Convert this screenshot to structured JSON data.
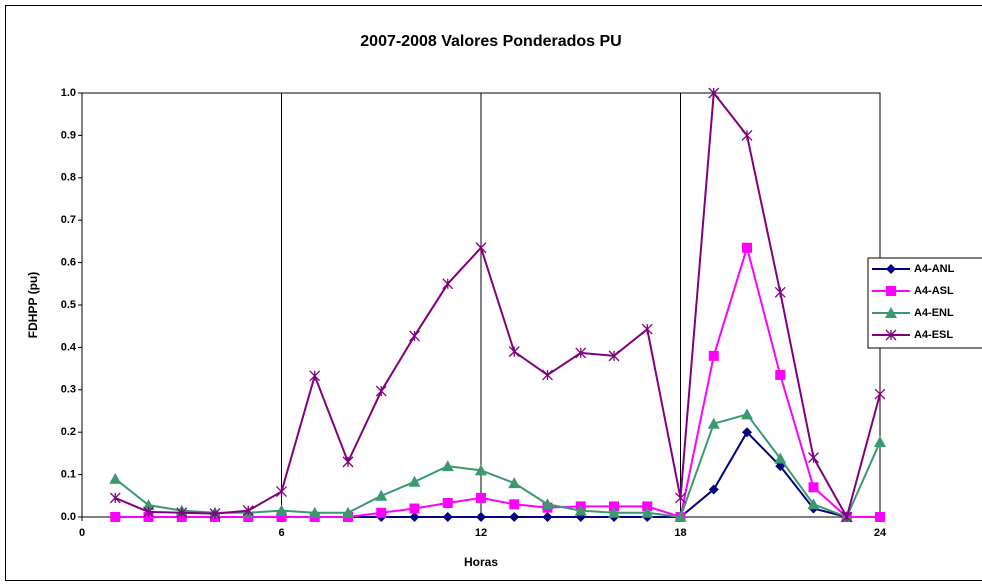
{
  "chart_data": {
    "type": "line",
    "title": "2007-2008 Valores Ponderados PU",
    "x_label": "Horas",
    "y_label": "FDHPP (pu)",
    "x": [
      1,
      2,
      3,
      4,
      5,
      6,
      7,
      8,
      9,
      10,
      11,
      12,
      13,
      14,
      15,
      16,
      17,
      18,
      19,
      20,
      21,
      22,
      23,
      24
    ],
    "xlim": [
      0,
      24
    ],
    "xticks": [
      0,
      6,
      12,
      18,
      24
    ],
    "ylim": [
      0,
      1
    ],
    "yticks": [
      {
        "value": 0,
        "label": "0.0"
      },
      0.1,
      0.2,
      0.3,
      0.4,
      0.5,
      0.6,
      0.7,
      0.8,
      0.9,
      {
        "value": 1,
        "label": "1.0"
      }
    ],
    "grid": "x",
    "legend": "right",
    "series": [
      {
        "name": "A4-ANL",
        "color": "#000080",
        "marker": "diamond",
        "values": [
          0,
          0,
          0,
          0,
          0,
          0,
          0,
          0,
          0,
          0,
          0,
          0,
          0,
          0,
          0,
          0,
          0,
          0,
          0.065,
          0.2,
          0.12,
          0.02,
          0,
          0
        ]
      },
      {
        "name": "A4-ASL",
        "color": "#ff00ff",
        "marker": "square",
        "values": [
          0,
          0,
          0,
          0,
          0,
          0,
          0,
          0,
          0.01,
          0.02,
          0.033,
          0.045,
          0.03,
          0.022,
          0.025,
          0.025,
          0.025,
          0,
          0.38,
          0.635,
          0.335,
          0.07,
          0,
          0
        ]
      },
      {
        "name": "A4-ENL",
        "color": "#3a9a6e",
        "marker": "triangle",
        "values": [
          0.09,
          0.028,
          0.015,
          0.01,
          0.01,
          0.015,
          0.01,
          0.01,
          0.05,
          0.083,
          0.12,
          0.11,
          0.08,
          0.03,
          0.015,
          0.01,
          0.01,
          0,
          0.22,
          0.242,
          0.138,
          0.03,
          0,
          0.177
        ]
      },
      {
        "name": "A4-ESL",
        "color": "#800080",
        "marker": "star",
        "values": [
          0.045,
          0.012,
          0.01,
          0.008,
          0.015,
          0.06,
          0.333,
          0.13,
          0.297,
          0.427,
          0.55,
          0.635,
          0.39,
          0.335,
          0.387,
          0.38,
          0.443,
          0.045,
          1.0,
          0.9,
          0.53,
          0.14,
          0,
          0.29
        ]
      }
    ]
  }
}
